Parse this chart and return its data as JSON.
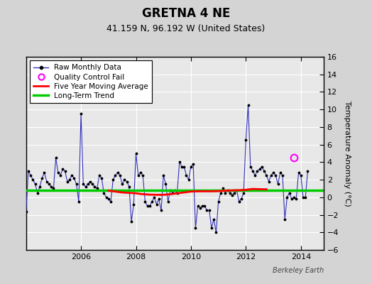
{
  "title": "GRETNA 4 NE",
  "subtitle": "41.159 N, 96.192 W (United States)",
  "ylabel": "Temperature Anomaly (°C)",
  "attribution": "Berkeley Earth",
  "ylim": [
    -6,
    16
  ],
  "yticks": [
    -6,
    -4,
    -2,
    0,
    2,
    4,
    6,
    8,
    10,
    12,
    14,
    16
  ],
  "xmin": 2004.0,
  "xmax": 2014.83,
  "bg_color": "#e8e8e8",
  "long_term_trend_y": 0.8,
  "qc_fail_x": 2013.75,
  "qc_fail_y": 4.5,
  "xtick_positions": [
    2006,
    2008,
    2010,
    2012,
    2014
  ],
  "title_fontsize": 12,
  "subtitle_fontsize": 9,
  "tick_fontsize": 8,
  "legend_fontsize": 7.5,
  "raw_data": [
    [
      2004.0,
      -1.6
    ],
    [
      2004.083,
      3.0
    ],
    [
      2004.167,
      2.5
    ],
    [
      2004.25,
      2.0
    ],
    [
      2004.333,
      1.5
    ],
    [
      2004.417,
      0.5
    ],
    [
      2004.5,
      1.2
    ],
    [
      2004.583,
      2.2
    ],
    [
      2004.667,
      2.8
    ],
    [
      2004.75,
      1.8
    ],
    [
      2004.833,
      1.5
    ],
    [
      2004.917,
      1.2
    ],
    [
      2005.0,
      1.0
    ],
    [
      2005.083,
      4.5
    ],
    [
      2005.167,
      2.8
    ],
    [
      2005.25,
      2.5
    ],
    [
      2005.333,
      3.2
    ],
    [
      2005.417,
      3.0
    ],
    [
      2005.5,
      1.8
    ],
    [
      2005.583,
      2.0
    ],
    [
      2005.667,
      2.5
    ],
    [
      2005.75,
      2.2
    ],
    [
      2005.833,
      1.5
    ],
    [
      2005.917,
      -0.5
    ],
    [
      2006.0,
      9.5
    ],
    [
      2006.083,
      1.5
    ],
    [
      2006.167,
      1.2
    ],
    [
      2006.25,
      1.5
    ],
    [
      2006.333,
      1.8
    ],
    [
      2006.417,
      1.5
    ],
    [
      2006.5,
      1.2
    ],
    [
      2006.583,
      1.0
    ],
    [
      2006.667,
      2.5
    ],
    [
      2006.75,
      2.2
    ],
    [
      2006.833,
      0.5
    ],
    [
      2006.917,
      0.0
    ],
    [
      2007.0,
      -0.2
    ],
    [
      2007.083,
      -0.5
    ],
    [
      2007.167,
      2.0
    ],
    [
      2007.25,
      2.5
    ],
    [
      2007.333,
      2.8
    ],
    [
      2007.417,
      2.5
    ],
    [
      2007.5,
      1.5
    ],
    [
      2007.583,
      2.0
    ],
    [
      2007.667,
      1.8
    ],
    [
      2007.75,
      1.2
    ],
    [
      2007.833,
      -2.8
    ],
    [
      2007.917,
      -0.8
    ],
    [
      2008.0,
      5.0
    ],
    [
      2008.083,
      2.5
    ],
    [
      2008.167,
      2.8
    ],
    [
      2008.25,
      2.5
    ],
    [
      2008.333,
      -0.5
    ],
    [
      2008.417,
      -1.0
    ],
    [
      2008.5,
      -1.0
    ],
    [
      2008.583,
      -0.5
    ],
    [
      2008.667,
      0.0
    ],
    [
      2008.75,
      -0.8
    ],
    [
      2008.833,
      -0.2
    ],
    [
      2008.917,
      -1.5
    ],
    [
      2009.0,
      2.5
    ],
    [
      2009.083,
      1.5
    ],
    [
      2009.167,
      -0.5
    ],
    [
      2009.25,
      0.8
    ],
    [
      2009.333,
      0.5
    ],
    [
      2009.417,
      0.8
    ],
    [
      2009.5,
      0.5
    ],
    [
      2009.583,
      4.0
    ],
    [
      2009.667,
      3.5
    ],
    [
      2009.75,
      3.5
    ],
    [
      2009.833,
      2.5
    ],
    [
      2009.917,
      2.0
    ],
    [
      2010.0,
      3.5
    ],
    [
      2010.083,
      3.8
    ],
    [
      2010.167,
      -3.5
    ],
    [
      2010.25,
      -1.0
    ],
    [
      2010.333,
      -1.2
    ],
    [
      2010.417,
      -1.0
    ],
    [
      2010.5,
      -1.0
    ],
    [
      2010.583,
      -1.5
    ],
    [
      2010.667,
      -1.5
    ],
    [
      2010.75,
      -3.5
    ],
    [
      2010.833,
      -2.5
    ],
    [
      2010.917,
      -4.0
    ],
    [
      2011.0,
      -0.5
    ],
    [
      2011.083,
      0.5
    ],
    [
      2011.167,
      1.0
    ],
    [
      2011.25,
      0.5
    ],
    [
      2011.333,
      0.8
    ],
    [
      2011.417,
      0.5
    ],
    [
      2011.5,
      0.2
    ],
    [
      2011.583,
      0.5
    ],
    [
      2011.667,
      0.8
    ],
    [
      2011.75,
      -0.5
    ],
    [
      2011.833,
      -0.2
    ],
    [
      2011.917,
      0.5
    ],
    [
      2012.0,
      6.5
    ],
    [
      2012.083,
      10.5
    ],
    [
      2012.167,
      3.5
    ],
    [
      2012.25,
      3.0
    ],
    [
      2012.333,
      2.5
    ],
    [
      2012.417,
      3.0
    ],
    [
      2012.5,
      3.2
    ],
    [
      2012.583,
      3.5
    ],
    [
      2012.667,
      3.0
    ],
    [
      2012.75,
      2.5
    ],
    [
      2012.833,
      1.8
    ],
    [
      2012.917,
      2.5
    ],
    [
      2013.0,
      2.8
    ],
    [
      2013.083,
      2.5
    ],
    [
      2013.167,
      1.5
    ],
    [
      2013.25,
      2.8
    ],
    [
      2013.333,
      2.5
    ],
    [
      2013.417,
      -2.5
    ],
    [
      2013.5,
      0.0
    ],
    [
      2013.583,
      0.5
    ],
    [
      2013.667,
      -0.2
    ],
    [
      2013.75,
      0.0
    ],
    [
      2013.833,
      -0.2
    ],
    [
      2013.917,
      2.8
    ],
    [
      2014.0,
      2.5
    ],
    [
      2014.083,
      0.0
    ],
    [
      2014.167,
      0.0
    ],
    [
      2014.25,
      3.0
    ]
  ],
  "moving_avg": [
    [
      2007.0,
      0.75
    ],
    [
      2007.25,
      0.65
    ],
    [
      2007.5,
      0.55
    ],
    [
      2007.75,
      0.5
    ],
    [
      2008.0,
      0.45
    ],
    [
      2008.25,
      0.35
    ],
    [
      2008.5,
      0.3
    ],
    [
      2008.75,
      0.28
    ],
    [
      2009.0,
      0.28
    ],
    [
      2009.25,
      0.35
    ],
    [
      2009.5,
      0.45
    ],
    [
      2009.75,
      0.55
    ],
    [
      2010.0,
      0.65
    ],
    [
      2010.25,
      0.68
    ],
    [
      2010.5,
      0.68
    ],
    [
      2010.75,
      0.68
    ],
    [
      2011.0,
      0.7
    ],
    [
      2011.25,
      0.75
    ],
    [
      2011.5,
      0.78
    ],
    [
      2011.75,
      0.8
    ],
    [
      2012.0,
      0.85
    ],
    [
      2012.25,
      0.95
    ],
    [
      2012.5,
      0.92
    ],
    [
      2012.75,
      0.9
    ]
  ]
}
